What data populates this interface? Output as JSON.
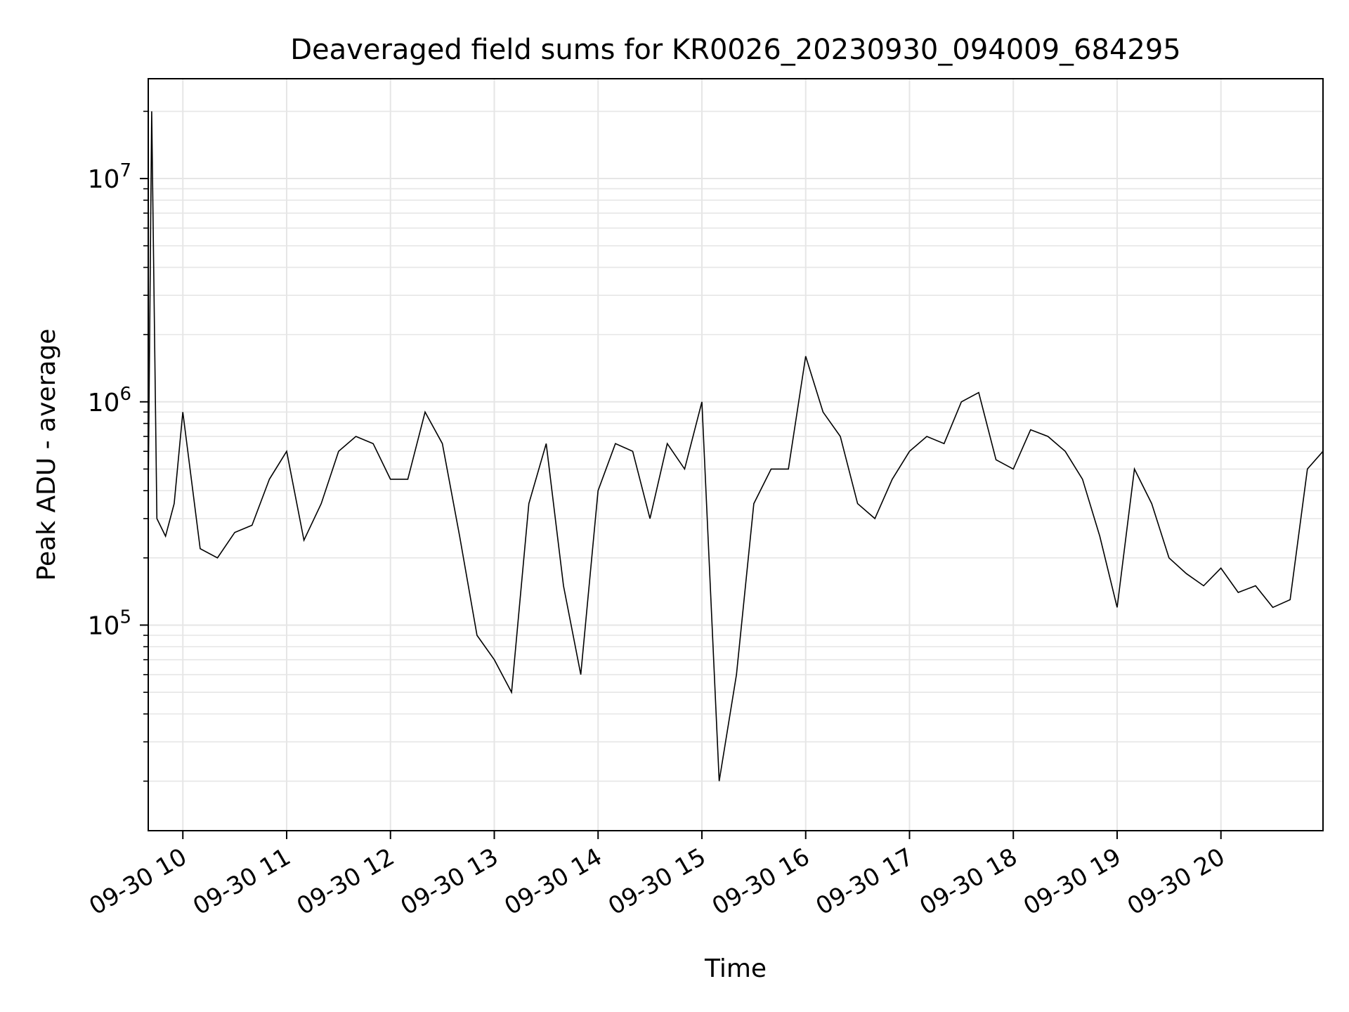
{
  "chart_data": {
    "type": "line",
    "title": "Deaveraged field sums for KR0026_20230930_094009_684295",
    "xlabel": "Time",
    "ylabel": "Peak ADU - average",
    "y_scale": "log",
    "grid": true,
    "line_color": "#000000",
    "grid_color": "#e6e6e6",
    "xlim": [
      "2023-09-30T09:40",
      "2023-09-30T20:59"
    ],
    "ylim": [
      12000,
      28000000
    ],
    "x_ticks": [
      {
        "time": "2023-09-30T10:00",
        "label": "09-30 10"
      },
      {
        "time": "2023-09-30T11:00",
        "label": "09-30 11"
      },
      {
        "time": "2023-09-30T12:00",
        "label": "09-30 12"
      },
      {
        "time": "2023-09-30T13:00",
        "label": "09-30 13"
      },
      {
        "time": "2023-09-30T14:00",
        "label": "09-30 14"
      },
      {
        "time": "2023-09-30T15:00",
        "label": "09-30 15"
      },
      {
        "time": "2023-09-30T16:00",
        "label": "09-30 16"
      },
      {
        "time": "2023-09-30T17:00",
        "label": "09-30 17"
      },
      {
        "time": "2023-09-30T18:00",
        "label": "09-30 18"
      },
      {
        "time": "2023-09-30T19:00",
        "label": "09-30 19"
      },
      {
        "time": "2023-09-30T20:00",
        "label": "09-30 20"
      }
    ],
    "y_ticks": [
      {
        "value": 100000,
        "base": "10",
        "exp": "5"
      },
      {
        "value": 1000000,
        "base": "10",
        "exp": "6"
      },
      {
        "value": 10000000,
        "base": "10",
        "exp": "7"
      }
    ],
    "series": [
      {
        "x": [
          "2023-09-30T09:40",
          "2023-09-30T09:42",
          "2023-09-30T09:45",
          "2023-09-30T09:50",
          "2023-09-30T09:55",
          "2023-09-30T10:00",
          "2023-09-30T10:10",
          "2023-09-30T10:20",
          "2023-09-30T10:30",
          "2023-09-30T10:40",
          "2023-09-30T10:50",
          "2023-09-30T11:00",
          "2023-09-30T11:10",
          "2023-09-30T11:20",
          "2023-09-30T11:30",
          "2023-09-30T11:40",
          "2023-09-30T11:50",
          "2023-09-30T12:00",
          "2023-09-30T12:10",
          "2023-09-30T12:20",
          "2023-09-30T12:30",
          "2023-09-30T12:40",
          "2023-09-30T12:50",
          "2023-09-30T13:00",
          "2023-09-30T13:10",
          "2023-09-30T13:20",
          "2023-09-30T13:30",
          "2023-09-30T13:40",
          "2023-09-30T13:50",
          "2023-09-30T14:00",
          "2023-09-30T14:10",
          "2023-09-30T14:20",
          "2023-09-30T14:30",
          "2023-09-30T14:40",
          "2023-09-30T14:50",
          "2023-09-30T15:00",
          "2023-09-30T15:10",
          "2023-09-30T15:20",
          "2023-09-30T15:30",
          "2023-09-30T15:40",
          "2023-09-30T15:50",
          "2023-09-30T16:00",
          "2023-09-30T16:10",
          "2023-09-30T16:20",
          "2023-09-30T16:30",
          "2023-09-30T16:40",
          "2023-09-30T16:50",
          "2023-09-30T17:00",
          "2023-09-30T17:10",
          "2023-09-30T17:20",
          "2023-09-30T17:30",
          "2023-09-30T17:40",
          "2023-09-30T17:50",
          "2023-09-30T18:00",
          "2023-09-30T18:10",
          "2023-09-30T18:20",
          "2023-09-30T18:30",
          "2023-09-30T18:40",
          "2023-09-30T18:50",
          "2023-09-30T19:00",
          "2023-09-30T19:10",
          "2023-09-30T19:20",
          "2023-09-30T19:30",
          "2023-09-30T19:40",
          "2023-09-30T19:50",
          "2023-09-30T20:00",
          "2023-09-30T20:10",
          "2023-09-30T20:20",
          "2023-09-30T20:30",
          "2023-09-30T20:40",
          "2023-09-30T20:50",
          "2023-09-30T20:59"
        ],
        "y": [
          400000,
          20000000,
          300000,
          250000,
          350000,
          900000,
          220000,
          200000,
          260000,
          280000,
          450000,
          600000,
          240000,
          350000,
          600000,
          700000,
          650000,
          450000,
          450000,
          900000,
          650000,
          250000,
          90000,
          70000,
          50000,
          350000,
          650000,
          150000,
          60000,
          400000,
          650000,
          600000,
          300000,
          650000,
          500000,
          1000000,
          20000,
          60000,
          350000,
          500000,
          500000,
          1600000,
          900000,
          700000,
          350000,
          300000,
          450000,
          600000,
          700000,
          650000,
          1000000,
          1100000,
          550000,
          500000,
          750000,
          700000,
          600000,
          450000,
          250000,
          120000,
          500000,
          350000,
          200000,
          170000,
          150000,
          180000,
          140000,
          150000,
          120000,
          130000,
          500000,
          600000
        ]
      }
    ]
  }
}
